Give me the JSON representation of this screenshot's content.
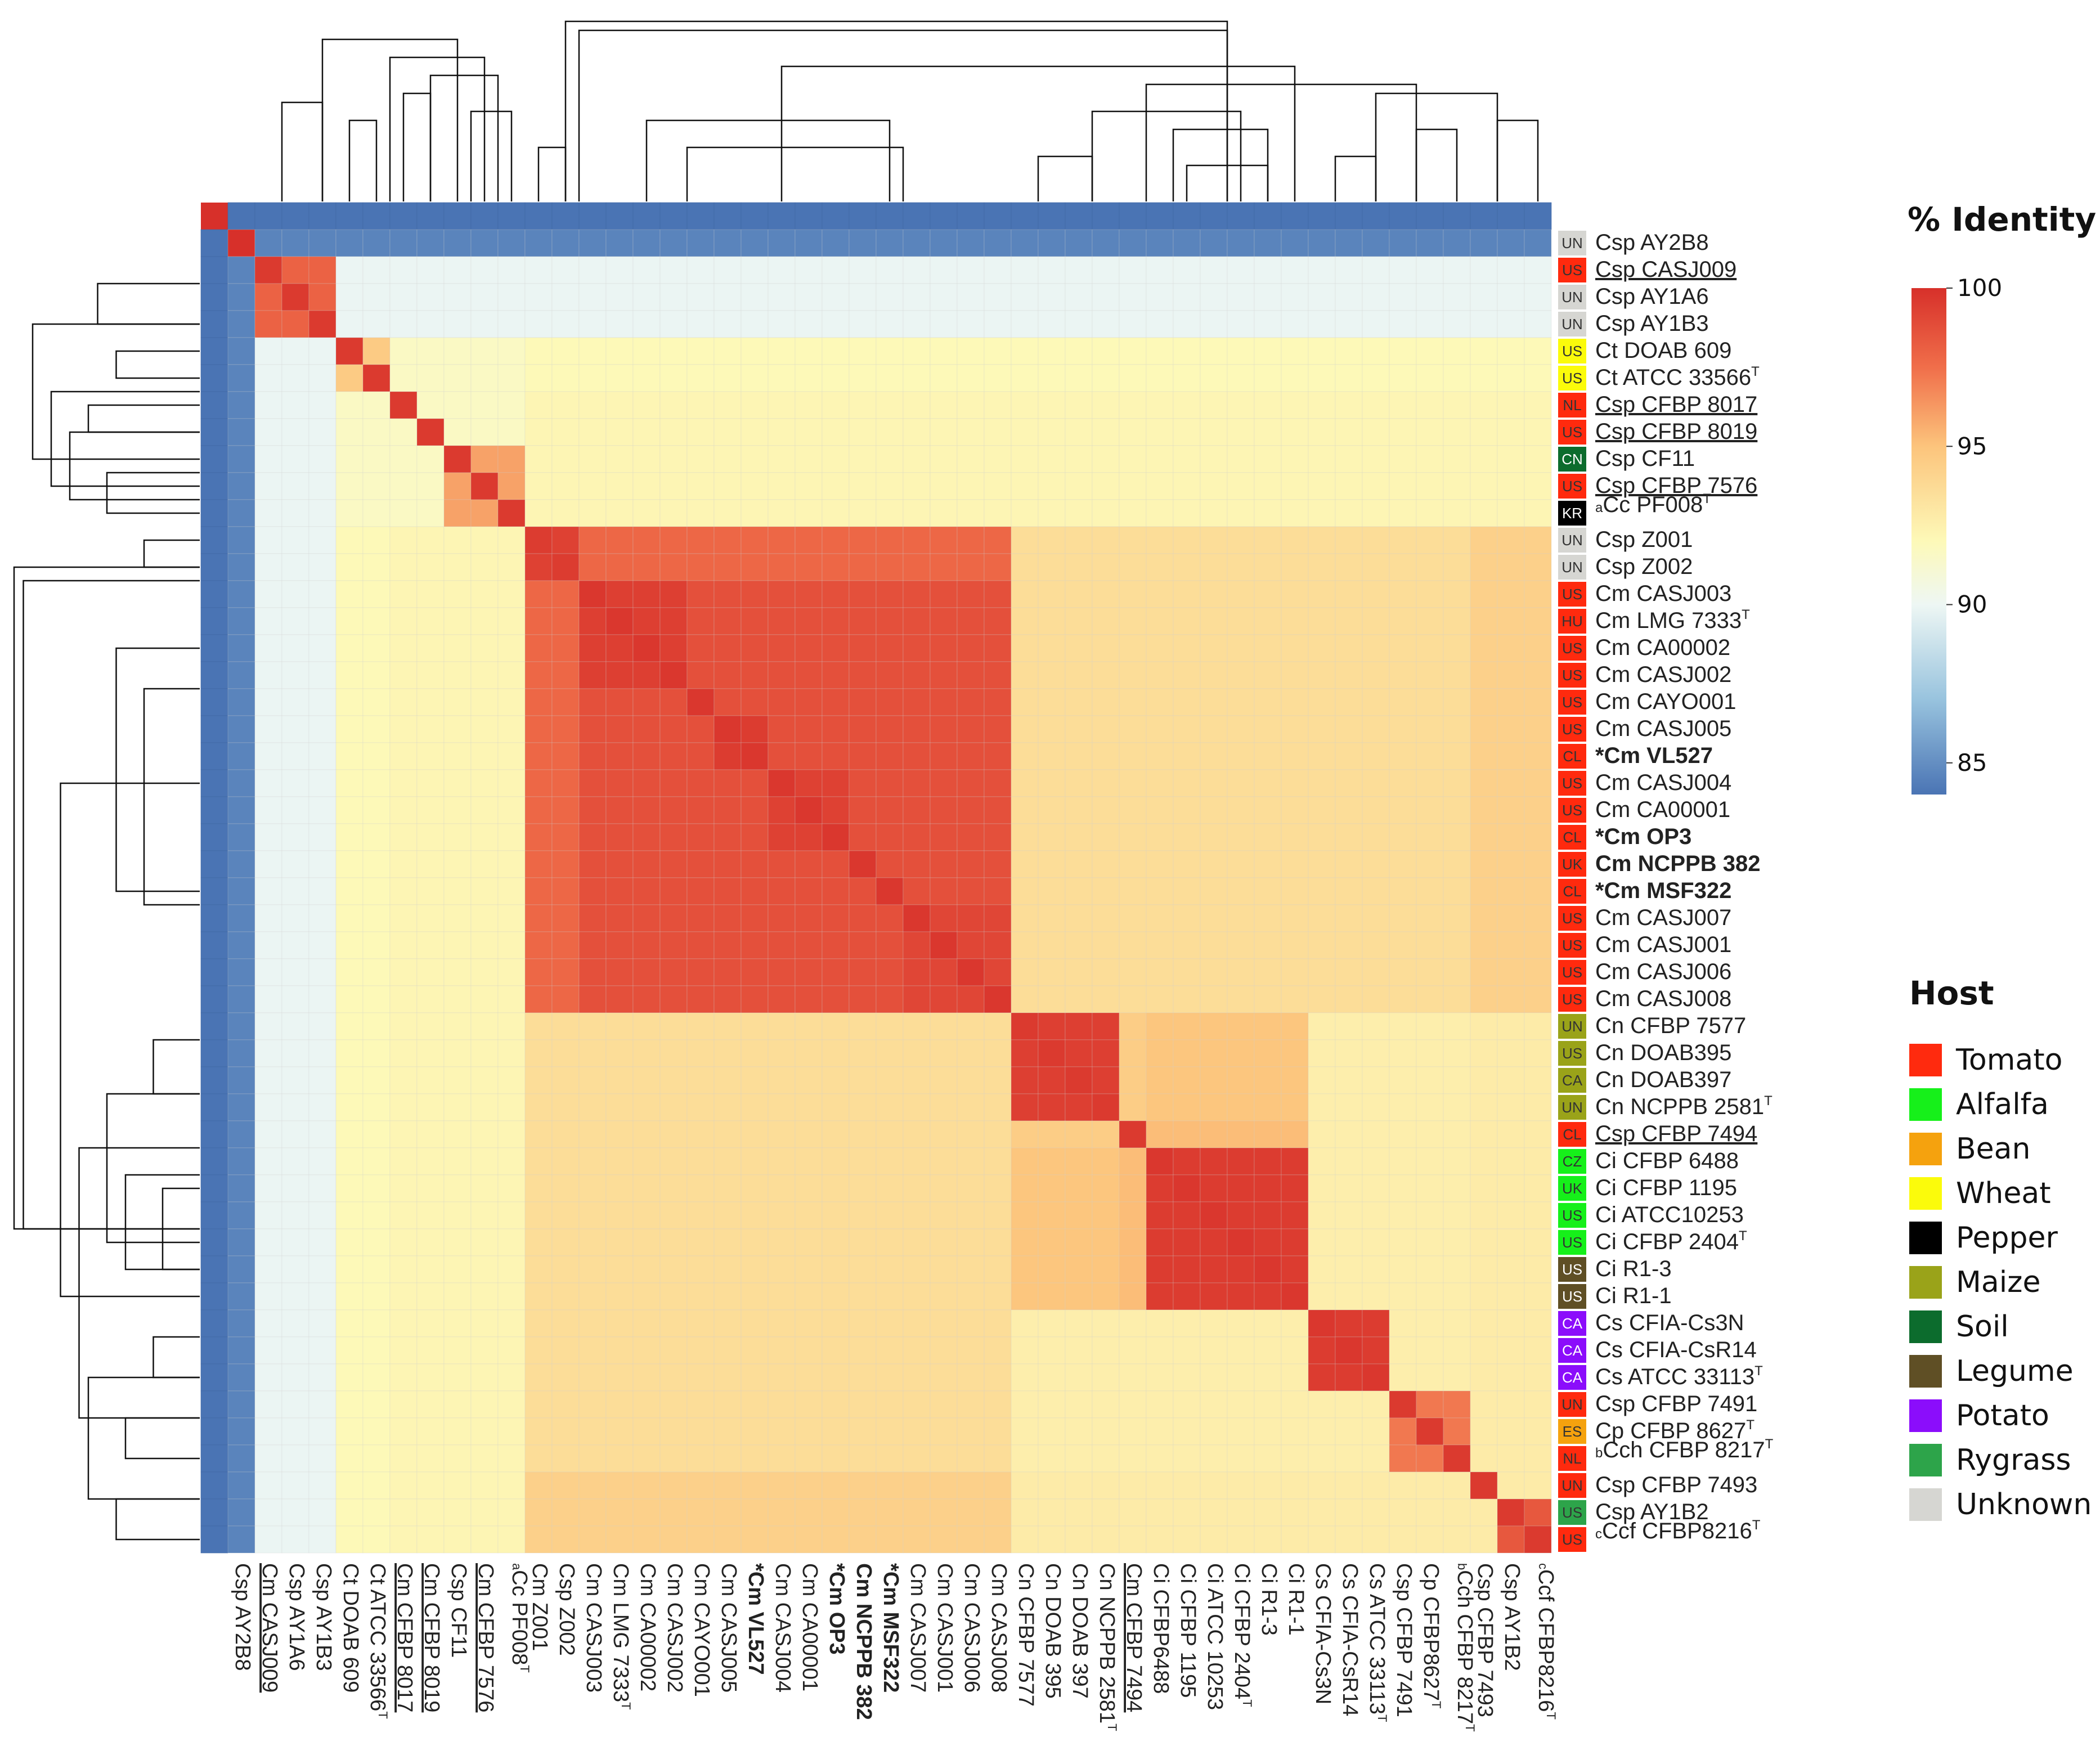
{
  "chart_data": {
    "type": "heatmap",
    "title": "",
    "colorbar": {
      "title": "% Identity",
      "range": [
        84,
        100
      ],
      "ticks": [
        85,
        90,
        95,
        100
      ],
      "stops": [
        {
          "v": 84,
          "color": "#4a74b4"
        },
        {
          "v": 87,
          "color": "#98c3de"
        },
        {
          "v": 90,
          "color": "#eef7f4"
        },
        {
          "v": 92,
          "color": "#fdf9b8"
        },
        {
          "v": 95,
          "color": "#fcc47c"
        },
        {
          "v": 97.5,
          "color": "#f06e4a"
        },
        {
          "v": 100,
          "color": "#d7302a"
        }
      ]
    },
    "strains": [
      {
        "pre": "",
        "sup_pre": "",
        "name": "Csp AY2B8",
        "sup": "",
        "bold": false,
        "underline": false,
        "host": "Unknown",
        "country": "UN"
      },
      {
        "pre": "",
        "sup_pre": "",
        "name": "Csp CASJ009",
        "sup": "",
        "bold": false,
        "underline": true,
        "host": "Tomato",
        "country": "US"
      },
      {
        "pre": "",
        "sup_pre": "",
        "name": "Csp AY1A6",
        "sup": "",
        "bold": false,
        "underline": false,
        "host": "Unknown",
        "country": "UN"
      },
      {
        "pre": "",
        "sup_pre": "",
        "name": "Csp AY1B3",
        "sup": "",
        "bold": false,
        "underline": false,
        "host": "Unknown",
        "country": "UN"
      },
      {
        "pre": "",
        "sup_pre": "",
        "name": "Ct DOAB 609",
        "sup": "",
        "bold": false,
        "underline": false,
        "host": "Wheat",
        "country": "US"
      },
      {
        "pre": "",
        "sup_pre": "",
        "name": "Ct ATCC 33566",
        "sup": "T",
        "bold": false,
        "underline": false,
        "host": "Wheat",
        "country": "US"
      },
      {
        "pre": "",
        "sup_pre": "",
        "name": "Csp CFBP 8017",
        "sup": "",
        "bold": false,
        "underline": true,
        "host": "Tomato",
        "country": "NL"
      },
      {
        "pre": "",
        "sup_pre": "",
        "name": "Csp CFBP 8019",
        "sup": "",
        "bold": false,
        "underline": true,
        "host": "Tomato",
        "country": "US"
      },
      {
        "pre": "",
        "sup_pre": "",
        "name": "Csp CF11",
        "sup": "",
        "bold": false,
        "underline": false,
        "host": "Soil",
        "country": "CN"
      },
      {
        "pre": "",
        "sup_pre": "",
        "name": "Csp CFBP 7576",
        "sup": "",
        "bold": false,
        "underline": true,
        "host": "Tomato",
        "country": "US"
      },
      {
        "pre": "",
        "sup_pre": "a",
        "name": "Cc PF008",
        "sup": "T",
        "bold": false,
        "underline": false,
        "host": "Pepper",
        "country": "KR"
      },
      {
        "pre": "",
        "sup_pre": "",
        "name": "Csp Z001",
        "sup": "",
        "bold": false,
        "underline": false,
        "host": "Unknown",
        "country": "UN"
      },
      {
        "pre": "",
        "sup_pre": "",
        "name": "Csp Z002",
        "sup": "",
        "bold": false,
        "underline": false,
        "host": "Unknown",
        "country": "UN"
      },
      {
        "pre": "",
        "sup_pre": "",
        "name": "Cm CASJ003",
        "sup": "",
        "bold": false,
        "underline": false,
        "host": "Tomato",
        "country": "US"
      },
      {
        "pre": "",
        "sup_pre": "",
        "name": "Cm LMG 7333",
        "sup": "T",
        "bold": false,
        "underline": false,
        "host": "Tomato",
        "country": "HU"
      },
      {
        "pre": "",
        "sup_pre": "",
        "name": "Cm CA00002",
        "sup": "",
        "bold": false,
        "underline": false,
        "host": "Tomato",
        "country": "US"
      },
      {
        "pre": "",
        "sup_pre": "",
        "name": "Cm CASJ002",
        "sup": "",
        "bold": false,
        "underline": false,
        "host": "Tomato",
        "country": "US"
      },
      {
        "pre": "",
        "sup_pre": "",
        "name": "Cm CAYO001",
        "sup": "",
        "bold": false,
        "underline": false,
        "host": "Tomato",
        "country": "US"
      },
      {
        "pre": "",
        "sup_pre": "",
        "name": "Cm CASJ005",
        "sup": "",
        "bold": false,
        "underline": false,
        "host": "Tomato",
        "country": "US"
      },
      {
        "pre": "*",
        "sup_pre": "",
        "name": "Cm VL527",
        "sup": "",
        "bold": true,
        "underline": false,
        "host": "Tomato",
        "country": "CL"
      },
      {
        "pre": "",
        "sup_pre": "",
        "name": "Cm CASJ004",
        "sup": "",
        "bold": false,
        "underline": false,
        "host": "Tomato",
        "country": "US"
      },
      {
        "pre": "",
        "sup_pre": "",
        "name": "Cm CA00001",
        "sup": "",
        "bold": false,
        "underline": false,
        "host": "Tomato",
        "country": "US"
      },
      {
        "pre": "*",
        "sup_pre": "",
        "name": "Cm OP3",
        "sup": "",
        "bold": true,
        "underline": false,
        "host": "Tomato",
        "country": "CL"
      },
      {
        "pre": "",
        "sup_pre": "",
        "name": "Cm NCPPB 382",
        "sup": "",
        "bold": true,
        "underline": false,
        "host": "Tomato",
        "country": "UK"
      },
      {
        "pre": "*",
        "sup_pre": "",
        "name": "Cm MSF322",
        "sup": "",
        "bold": true,
        "underline": false,
        "host": "Tomato",
        "country": "CL"
      },
      {
        "pre": "",
        "sup_pre": "",
        "name": "Cm CASJ007",
        "sup": "",
        "bold": false,
        "underline": false,
        "host": "Tomato",
        "country": "US"
      },
      {
        "pre": "",
        "sup_pre": "",
        "name": "Cm CASJ001",
        "sup": "",
        "bold": false,
        "underline": false,
        "host": "Tomato",
        "country": "US"
      },
      {
        "pre": "",
        "sup_pre": "",
        "name": "Cm CASJ006",
        "sup": "",
        "bold": false,
        "underline": false,
        "host": "Tomato",
        "country": "US"
      },
      {
        "pre": "",
        "sup_pre": "",
        "name": "Cm CASJ008",
        "sup": "",
        "bold": false,
        "underline": false,
        "host": "Tomato",
        "country": "US"
      },
      {
        "pre": "",
        "sup_pre": "",
        "name": "Cn CFBP 7577",
        "sup": "",
        "bold": false,
        "underline": false,
        "host": "Maize",
        "country": "UN"
      },
      {
        "pre": "",
        "sup_pre": "",
        "name": "Cn DOAB395",
        "sup": "",
        "bold": false,
        "underline": false,
        "host": "Maize",
        "country": "US"
      },
      {
        "pre": "",
        "sup_pre": "",
        "name": "Cn DOAB397",
        "sup": "",
        "bold": false,
        "underline": false,
        "host": "Maize",
        "country": "CA"
      },
      {
        "pre": "",
        "sup_pre": "",
        "name": "Cn NCPPB 2581",
        "sup": "T",
        "bold": false,
        "underline": false,
        "host": "Maize",
        "country": "UN"
      },
      {
        "pre": "",
        "sup_pre": "",
        "name": "Csp CFBP 7494",
        "sup": "",
        "bold": false,
        "underline": true,
        "host": "Tomato",
        "country": "CL"
      },
      {
        "pre": "",
        "sup_pre": "",
        "name": "Ci CFBP 6488",
        "sup": "",
        "bold": false,
        "underline": false,
        "host": "Alfalfa",
        "country": "CZ"
      },
      {
        "pre": "",
        "sup_pre": "",
        "name": "Ci CFBP 1195",
        "sup": "",
        "bold": false,
        "underline": false,
        "host": "Alfalfa",
        "country": "UK"
      },
      {
        "pre": "",
        "sup_pre": "",
        "name": "Ci ATCC10253",
        "sup": "",
        "bold": false,
        "underline": false,
        "host": "Alfalfa",
        "country": "US"
      },
      {
        "pre": "",
        "sup_pre": "",
        "name": "Ci CFBP 2404",
        "sup": "T",
        "bold": false,
        "underline": false,
        "host": "Alfalfa",
        "country": "US"
      },
      {
        "pre": "",
        "sup_pre": "",
        "name": "Ci R1-3",
        "sup": "",
        "bold": false,
        "underline": false,
        "host": "Legume",
        "country": "US"
      },
      {
        "pre": "",
        "sup_pre": "",
        "name": "Ci R1-1",
        "sup": "",
        "bold": false,
        "underline": false,
        "host": "Legume",
        "country": "US"
      },
      {
        "pre": "",
        "sup_pre": "",
        "name": "Cs CFIA-Cs3N",
        "sup": "",
        "bold": false,
        "underline": false,
        "host": "Potato",
        "country": "CA"
      },
      {
        "pre": "",
        "sup_pre": "",
        "name": "Cs CFIA-CsR14",
        "sup": "",
        "bold": false,
        "underline": false,
        "host": "Potato",
        "country": "CA"
      },
      {
        "pre": "",
        "sup_pre": "",
        "name": "Cs ATCC 33113",
        "sup": "T",
        "bold": false,
        "underline": false,
        "host": "Potato",
        "country": "CA"
      },
      {
        "pre": "",
        "sup_pre": "",
        "name": "Csp CFBP 7491",
        "sup": "",
        "bold": false,
        "underline": false,
        "host": "Tomato",
        "country": "UN"
      },
      {
        "pre": "",
        "sup_pre": "",
        "name": "Cp CFBP 8627",
        "sup": "T",
        "bold": false,
        "underline": false,
        "host": "Bean",
        "country": "ES"
      },
      {
        "pre": "",
        "sup_pre": "b",
        "name": "Cch CFBP 8217",
        "sup": "T",
        "bold": false,
        "underline": false,
        "host": "Tomato",
        "country": "NL"
      },
      {
        "pre": "",
        "sup_pre": "",
        "name": "Csp CFBP 7493",
        "sup": "",
        "bold": false,
        "underline": false,
        "host": "Tomato",
        "country": "UN"
      },
      {
        "pre": "",
        "sup_pre": "",
        "name": "Csp AY1B2",
        "sup": "",
        "bold": false,
        "underline": false,
        "host": "Rygrass",
        "country": "US"
      },
      {
        "pre": "",
        "sup_pre": "c",
        "name": "Ccf CFBP8216",
        "sup": "T",
        "bold": false,
        "underline": false,
        "host": "Tomato",
        "country": "US"
      }
    ],
    "column_labels": [
      "Csp AY2B8",
      "Cm CASJ009",
      "Csp AY1A6",
      "Csp AY1B3",
      "Ct DOAB 609",
      "Ct ATCC 33566",
      "Cm CFBP 8017",
      "Cm CFBP 8019",
      "Csp CF11",
      "Cm CFBP 7576",
      "Cc PF008",
      "Cm Z001",
      "Csp Z002",
      "Cm CASJ003",
      "Cm LMG 7333",
      "Cm CA00002",
      "Cm CASJ002",
      "Cm CAYO001",
      "Cm CASJ005",
      "Cm VL527",
      "Cm CASJ004",
      "Cm CA00001",
      "Cm OP3",
      "Cm NCPPB 382",
      "Cm MSF322",
      "Cm CASJ007",
      "Cm CASJ001",
      "Cm CASJ006",
      "Cm CASJ008",
      "Cn CFBP 7577",
      "Cn DOAB 395",
      "Cn DOAB 397",
      "Cn NCPPB 2581",
      "Cm CFBP 7494",
      "Ci CFBP6488",
      "Ci CFBP 1195",
      "Ci ATCC 10253",
      "Ci CFBP 2404",
      "Ci R1-3",
      "Ci R1-1",
      "Cs CFIA-Cs3N",
      "Cs CFIA-CsR14",
      "Cs ATCC 33113",
      "Csp CFBP 7491",
      "Cp CFBP8627",
      "Cch CFBP 8217",
      "Csp CFBP 7493",
      "Csp AY1B2",
      "Ccf CFBP8216"
    ],
    "clusters": [
      {
        "i": 0,
        "j": 0,
        "self": 100,
        "within": 100
      },
      {
        "i": 1,
        "j": 3,
        "self": 99.6,
        "within": 98.0
      },
      {
        "i": 4,
        "j": 5,
        "self": 99.6,
        "within": 94.6
      },
      {
        "i": 6,
        "j": 6,
        "self": 99.6,
        "within": 99.6
      },
      {
        "i": 7,
        "j": 7,
        "self": 99.6,
        "within": 99.6
      },
      {
        "i": 8,
        "j": 10,
        "self": 99.6,
        "within": 96.0
      },
      {
        "i": 11,
        "j": 12,
        "self": 99.5,
        "within": 99.3
      },
      {
        "i": 13,
        "j": 28,
        "self": 99.7,
        "within": 98.7
      },
      {
        "i": 29,
        "j": 32,
        "self": 99.6,
        "within": 99.4
      },
      {
        "i": 33,
        "j": 33,
        "self": 99.6,
        "within": 99.6
      },
      {
        "i": 34,
        "j": 39,
        "self": 99.7,
        "within": 99.5
      },
      {
        "i": 40,
        "j": 42,
        "self": 99.7,
        "within": 99.5
      },
      {
        "i": 43,
        "j": 45,
        "self": 99.6,
        "within": 97.8
      },
      {
        "i": 46,
        "j": 46,
        "self": 99.6,
        "within": 99.6
      },
      {
        "i": 47,
        "j": 48,
        "self": 99.6,
        "within": 98.4
      }
    ],
    "block_values": [
      {
        "a": [
          13,
          28
        ],
        "b": [
          13,
          28
        ],
        "value": 98.2
      },
      {
        "a": [
          13,
          16
        ],
        "b": [
          13,
          16
        ],
        "value": 99.4
      },
      {
        "a": [
          18,
          19
        ],
        "b": [
          18,
          19
        ],
        "value": 99.5
      },
      {
        "a": [
          20,
          22
        ],
        "b": [
          20,
          22
        ],
        "value": 99.3
      },
      {
        "a": [
          25,
          28
        ],
        "b": [
          25,
          28
        ],
        "value": 99.1
      },
      {
        "a": [
          11,
          12
        ],
        "b": [
          13,
          28
        ],
        "value": 97.8
      },
      {
        "a": [
          29,
          33
        ],
        "b": [
          34,
          39
        ],
        "value": 94.9
      },
      {
        "a": [
          33,
          33
        ],
        "b": [
          29,
          32
        ],
        "value": 94.5
      },
      {
        "a": [
          33,
          33
        ],
        "b": [
          34,
          39
        ],
        "value": 95.2
      },
      {
        "a": [
          43,
          45
        ],
        "b": [
          43,
          45
        ],
        "value": 97.2
      },
      {
        "a": [
          1,
          3
        ],
        "b": [
          4,
          48
        ],
        "value": 89.9
      },
      {
        "a": [
          4,
          10
        ],
        "b": [
          4,
          10
        ],
        "value": 91.6
      },
      {
        "a": [
          6,
          10
        ],
        "b": [
          11,
          48
        ],
        "value": 92.2
      },
      {
        "a": [
          11,
          28
        ],
        "b": [
          29,
          45
        ],
        "value": 93.6
      },
      {
        "a": [
          11,
          28
        ],
        "b": [
          46,
          48
        ],
        "value": 94.3
      },
      {
        "a": [
          29,
          45
        ],
        "b": [
          29,
          45
        ],
        "value": 92.6
      },
      {
        "a": [
          29,
          48
        ],
        "b": [
          46,
          48
        ],
        "value": 92.8
      },
      {
        "a": [
          0,
          0
        ],
        "b": [
          1,
          48
        ],
        "value": 84.6
      }
    ],
    "default_value": 92.0,
    "host_legend": {
      "title": "Host",
      "entries": [
        {
          "label": "Tomato",
          "color": "#ff2a0e"
        },
        {
          "label": "Alfalfa",
          "color": "#16f01a"
        },
        {
          "label": "Bean",
          "color": "#f5a20e"
        },
        {
          "label": "Wheat",
          "color": "#fbfb0b"
        },
        {
          "label": "Pepper",
          "color": "#000000"
        },
        {
          "label": "Maize",
          "color": "#9aa319"
        },
        {
          "label": "Soil",
          "color": "#0c6c2d"
        },
        {
          "label": "Legume",
          "color": "#5f4f25"
        },
        {
          "label": "Potato",
          "color": "#8b0dfb"
        },
        {
          "label": "Rygrass",
          "color": "#2da44a"
        },
        {
          "label": "Unknown",
          "color": "#d6d6d2"
        }
      ]
    }
  }
}
